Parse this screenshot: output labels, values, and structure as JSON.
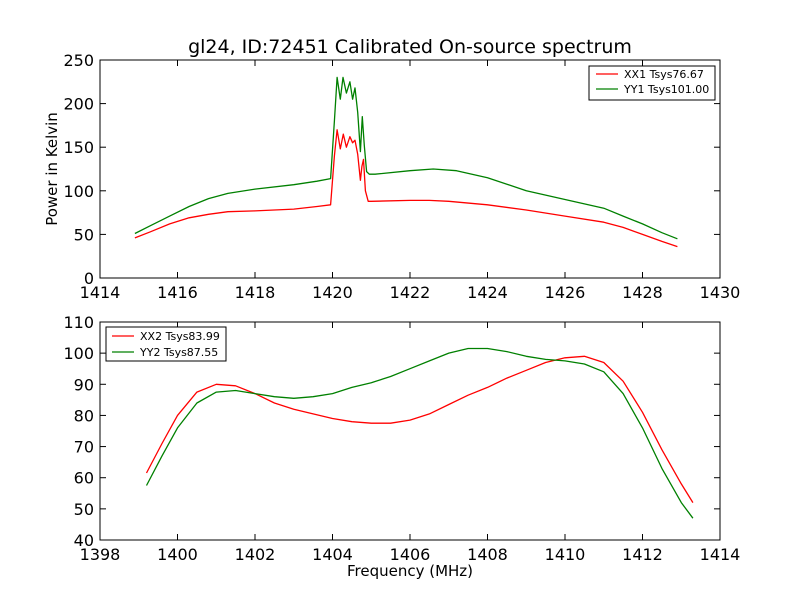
{
  "chart_data": [
    {
      "type": "line",
      "title": "gl24, ID:72451 Calibrated On-source spectrum",
      "xlabel": "",
      "ylabel": "Power in Kelvin",
      "xlim": [
        1414,
        1430
      ],
      "ylim": [
        0,
        250
      ],
      "xticks": [
        "1414",
        "1416",
        "1418",
        "1420",
        "1422",
        "1424",
        "1426",
        "1428",
        "1430"
      ],
      "yticks": [
        "0",
        "50",
        "100",
        "150",
        "200",
        "250"
      ],
      "legend_position": "top-right",
      "grid": false,
      "series": [
        {
          "name": "XX1 Tsys76.67",
          "color": "#ff0000",
          "x": [
            1414.9,
            1415.3,
            1415.8,
            1416.3,
            1416.8,
            1417.3,
            1418.0,
            1419.0,
            1419.6,
            1419.95,
            1420.05,
            1420.12,
            1420.2,
            1420.28,
            1420.36,
            1420.45,
            1420.52,
            1420.58,
            1420.65,
            1420.72,
            1420.76,
            1420.8,
            1420.85,
            1420.92,
            1421.0,
            1422.0,
            1422.5,
            1423.0,
            1424.0,
            1425.0,
            1426.0,
            1427.0,
            1427.5,
            1428.0,
            1428.5,
            1428.9
          ],
          "values": [
            46,
            53,
            62,
            69,
            73,
            76,
            77,
            79,
            82,
            84,
            140,
            170,
            148,
            165,
            150,
            162,
            155,
            158,
            142,
            112,
            128,
            136,
            100,
            88,
            88,
            89,
            89,
            88,
            84,
            78,
            71,
            64,
            58,
            50,
            42,
            36
          ]
        },
        {
          "name": "YY1 Tsys101.00",
          "color": "#008000",
          "x": [
            1414.9,
            1415.3,
            1415.8,
            1416.3,
            1416.8,
            1417.3,
            1418.0,
            1419.0,
            1419.6,
            1419.95,
            1420.05,
            1420.12,
            1420.2,
            1420.27,
            1420.36,
            1420.45,
            1420.52,
            1420.58,
            1420.65,
            1420.72,
            1420.77,
            1420.82,
            1420.88,
            1420.95,
            1421.1,
            1422.0,
            1422.6,
            1423.2,
            1424.0,
            1425.0,
            1426.0,
            1427.0,
            1427.5,
            1428.0,
            1428.5,
            1428.9
          ],
          "values": [
            51,
            60,
            71,
            82,
            91,
            97,
            102,
            107,
            111,
            114,
            180,
            230,
            205,
            230,
            212,
            225,
            205,
            218,
            190,
            145,
            185,
            152,
            122,
            119,
            119,
            123,
            125,
            123,
            115,
            100,
            90,
            80,
            71,
            62,
            52,
            45
          ]
        }
      ]
    },
    {
      "type": "line",
      "title": "",
      "xlabel": "Frequency (MHz)",
      "ylabel": "",
      "xlim": [
        1398,
        1414
      ],
      "ylim": [
        40,
        110
      ],
      "xticks": [
        "1398",
        "1400",
        "1402",
        "1404",
        "1406",
        "1408",
        "1410",
        "1412",
        "1414"
      ],
      "yticks": [
        "40",
        "50",
        "60",
        "70",
        "80",
        "90",
        "100",
        "110"
      ],
      "legend_position": "top-left",
      "grid": false,
      "series": [
        {
          "name": "XX2 Tsys83.99",
          "color": "#ff0000",
          "x": [
            1399.2,
            1399.6,
            1400.0,
            1400.5,
            1401.0,
            1401.5,
            1402.0,
            1402.5,
            1403.0,
            1403.5,
            1404.0,
            1404.5,
            1405.0,
            1405.5,
            1406.0,
            1406.5,
            1407.0,
            1407.5,
            1408.0,
            1408.5,
            1409.0,
            1409.5,
            1410.0,
            1410.5,
            1411.0,
            1411.5,
            1412.0,
            1412.5,
            1413.0,
            1413.3
          ],
          "values": [
            61.5,
            71,
            80,
            87.5,
            90,
            89.5,
            87,
            84,
            82,
            80.5,
            79,
            78,
            77.5,
            77.5,
            78.5,
            80.5,
            83.5,
            86.5,
            89,
            92,
            94.5,
            97,
            98.5,
            99,
            97,
            91,
            81,
            69,
            58,
            52
          ]
        },
        {
          "name": "YY2 Tsys87.55",
          "color": "#008000",
          "x": [
            1399.2,
            1399.6,
            1400.0,
            1400.5,
            1401.0,
            1401.5,
            1402.0,
            1402.5,
            1403.0,
            1403.5,
            1404.0,
            1404.5,
            1405.0,
            1405.5,
            1406.0,
            1406.5,
            1407.0,
            1407.5,
            1408.0,
            1408.5,
            1409.0,
            1409.5,
            1410.0,
            1410.5,
            1411.0,
            1411.5,
            1412.0,
            1412.5,
            1413.0,
            1413.3
          ],
          "values": [
            57.5,
            67,
            76,
            84,
            87.5,
            88,
            87,
            86,
            85.5,
            86,
            87,
            89,
            90.5,
            92.5,
            95,
            97.5,
            100,
            101.5,
            101.5,
            100.5,
            99,
            98,
            97.5,
            96.5,
            94,
            87,
            76,
            63,
            52,
            47
          ]
        }
      ]
    }
  ]
}
